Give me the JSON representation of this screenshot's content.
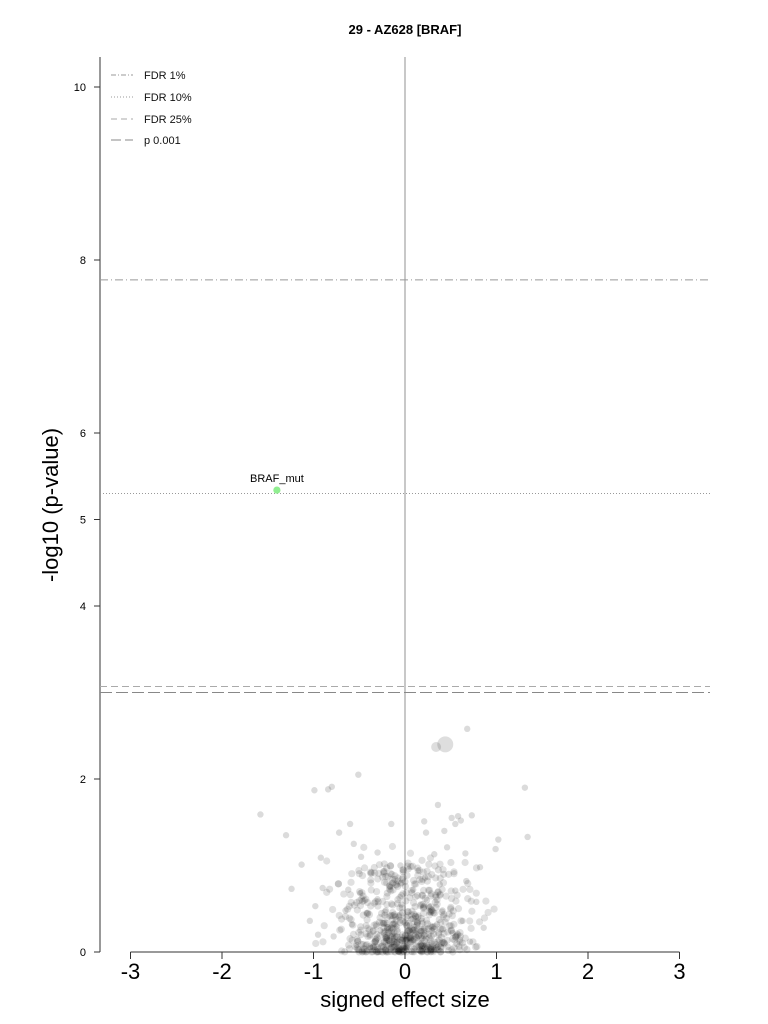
{
  "chart_data": {
    "type": "scatter",
    "title": "29 - AZ628 [BRAF]",
    "xlabel": "signed effect size",
    "ylabel": "-log10 (p-value)",
    "xlim": [
      -3.35,
      3.35
    ],
    "ylim": [
      0,
      10.3
    ],
    "xticks": [
      -3,
      -2,
      -1,
      0,
      1,
      2,
      3
    ],
    "xtick_labels": [
      "-3",
      "-2",
      "-1",
      "0",
      "1",
      "2",
      "3"
    ],
    "yticks": [
      0,
      2,
      4,
      5,
      6,
      8,
      10
    ],
    "ytick_labels": [
      "0",
      "2",
      "4",
      "5",
      "6",
      "8",
      "10"
    ],
    "grid": false,
    "legend_position": "top-left",
    "zero_line_x": 0,
    "thresholds": [
      {
        "name": "FDR 1%",
        "y": 7.77,
        "style": "dashdot",
        "color": "#999999"
      },
      {
        "name": "FDR 10%",
        "y": 5.3,
        "style": "dotted",
        "color": "#999999"
      },
      {
        "name": "FDR 25%",
        "y": 3.07,
        "style": "dashed",
        "color": "#aaaaaa"
      },
      {
        "name": "p 0.001",
        "y": 3.0,
        "style": "longdash",
        "color": "#888888"
      }
    ],
    "highlight_point": {
      "label": "BRAF_mut",
      "x": -1.4,
      "y": 5.34,
      "color": "#90ee90"
    },
    "big_points": [
      {
        "x": 0.44,
        "y": 2.4,
        "size": 8
      },
      {
        "x": 0.34,
        "y": 2.37,
        "size": 5
      }
    ],
    "points": [
      [
        0.68,
        2.58
      ],
      [
        -0.51,
        2.05
      ],
      [
        -0.8,
        1.91
      ],
      [
        -0.84,
        1.88
      ],
      [
        -0.99,
        1.87
      ],
      [
        1.31,
        1.9
      ],
      [
        -1.58,
        1.59
      ],
      [
        -1.3,
        1.35
      ],
      [
        0.36,
        1.7
      ],
      [
        0.21,
        1.51
      ],
      [
        0.58,
        1.57
      ],
      [
        0.51,
        1.55
      ],
      [
        0.55,
        1.48
      ],
      [
        0.61,
        1.52
      ],
      [
        0.73,
        1.58
      ],
      [
        1.02,
        1.3
      ],
      [
        1.34,
        1.33
      ],
      [
        -0.6,
        1.48
      ],
      [
        -0.72,
        1.38
      ],
      [
        -0.15,
        1.48
      ],
      [
        0.23,
        1.38
      ],
      [
        0.43,
        1.4
      ],
      [
        0.46,
        1.21
      ],
      [
        0.99,
        1.19
      ],
      [
        -1.13,
        1.01
      ],
      [
        -0.92,
        1.09
      ],
      [
        -0.56,
        1.25
      ],
      [
        -0.48,
        1.1
      ],
      [
        -0.3,
        1.15
      ],
      [
        -0.05,
        1.0
      ],
      [
        0.04,
        0.96
      ],
      [
        0.14,
        0.94
      ],
      [
        0.32,
        1.13
      ],
      [
        0.66,
        1.14
      ],
      [
        0.82,
        0.98
      ],
      [
        -1.24,
        0.73
      ],
      [
        -0.9,
        0.74
      ],
      [
        -0.98,
        0.53
      ],
      [
        -0.62,
        0.72
      ],
      [
        -0.65,
        0.48
      ],
      [
        -0.49,
        0.68
      ],
      [
        -0.3,
        0.61
      ],
      [
        -0.16,
        0.75
      ],
      [
        -0.04,
        0.8
      ],
      [
        0.09,
        0.72
      ],
      [
        0.22,
        0.86
      ],
      [
        0.38,
        0.78
      ],
      [
        0.55,
        0.71
      ],
      [
        0.67,
        0.82
      ],
      [
        0.78,
        0.58
      ],
      [
        -1.04,
        0.36
      ],
      [
        -0.95,
        0.2
      ],
      [
        -0.78,
        0.18
      ],
      [
        -0.58,
        0.32
      ],
      [
        -0.53,
        0.08
      ],
      [
        -0.42,
        0.45
      ],
      [
        -0.38,
        0.05
      ],
      [
        -0.27,
        0.25
      ],
      [
        -0.21,
        0.48
      ],
      [
        -0.14,
        0.11
      ],
      [
        -0.09,
        0.3
      ],
      [
        -0.04,
        0.55
      ],
      [
        0.01,
        0.14
      ],
      [
        0.07,
        0.38
      ],
      [
        0.11,
        0.05
      ],
      [
        0.17,
        0.24
      ],
      [
        0.24,
        0.6
      ],
      [
        0.29,
        0.1
      ],
      [
        0.35,
        0.32
      ],
      [
        0.41,
        0.48
      ],
      [
        0.47,
        0.06
      ],
      [
        0.52,
        0.22
      ],
      [
        0.63,
        0.36
      ],
      [
        0.71,
        0.12
      ],
      [
        0.86,
        0.28
      ]
    ],
    "n_cloud": 600
  }
}
